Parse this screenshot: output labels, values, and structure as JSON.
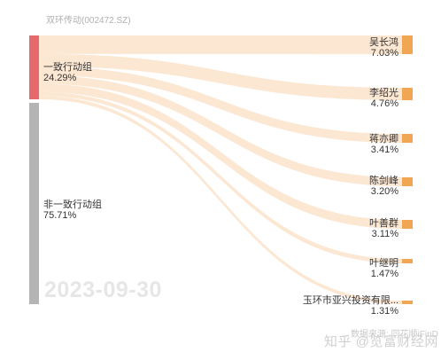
{
  "header": {
    "title": "双环传动(002472.SZ)"
  },
  "groups": [
    {
      "label": "一致行动组",
      "pct": "24.29%",
      "color": "#e8696b"
    },
    {
      "label": "非一致行动组",
      "pct": "75.71%",
      "color": "#b4b4b4"
    }
  ],
  "shareholders": [
    {
      "name": "吴长鸿",
      "pct": "7.03%"
    },
    {
      "name": "李绍光",
      "pct": "4.76%"
    },
    {
      "name": "蒋亦卿",
      "pct": "3.41%"
    },
    {
      "name": "陈剑峰",
      "pct": "3.20%"
    },
    {
      "name": "叶善群",
      "pct": "3.11%"
    },
    {
      "name": "叶继明",
      "pct": "1.47%"
    },
    {
      "name": "玉环市亚兴投资有限...",
      "pct": "1.31%"
    }
  ],
  "chart_data": {
    "type": "sankey",
    "title": "双环传动(002472.SZ)",
    "date": "2023-09-30",
    "sources": [
      {
        "name": "一致行动组",
        "value": 24.29
      },
      {
        "name": "非一致行动组",
        "value": 75.71
      }
    ],
    "links": [
      {
        "source": "一致行动组",
        "target": "吴长鸿",
        "value": 7.03
      },
      {
        "source": "一致行动组",
        "target": "李绍光",
        "value": 4.76
      },
      {
        "source": "一致行动组",
        "target": "蒋亦卿",
        "value": 3.41
      },
      {
        "source": "一致行动组",
        "target": "陈剑峰",
        "value": 3.2
      },
      {
        "source": "一致行动组",
        "target": "叶善群",
        "value": 3.11
      },
      {
        "source": "一致行动组",
        "target": "叶继明",
        "value": 1.47
      },
      {
        "source": "一致行动组",
        "target": "玉环市亚兴投资有限...",
        "value": 1.31
      }
    ],
    "colors": {
      "group_acting": "#e8696b",
      "group_other": "#b4b4b4",
      "shareholder": "#f0a653",
      "flow": "#fbe3cb"
    }
  },
  "watermark": {
    "date": "2023-09-30",
    "source": "数据来源: 同花顺iFinD",
    "platform": "知乎 @览富财经网"
  }
}
